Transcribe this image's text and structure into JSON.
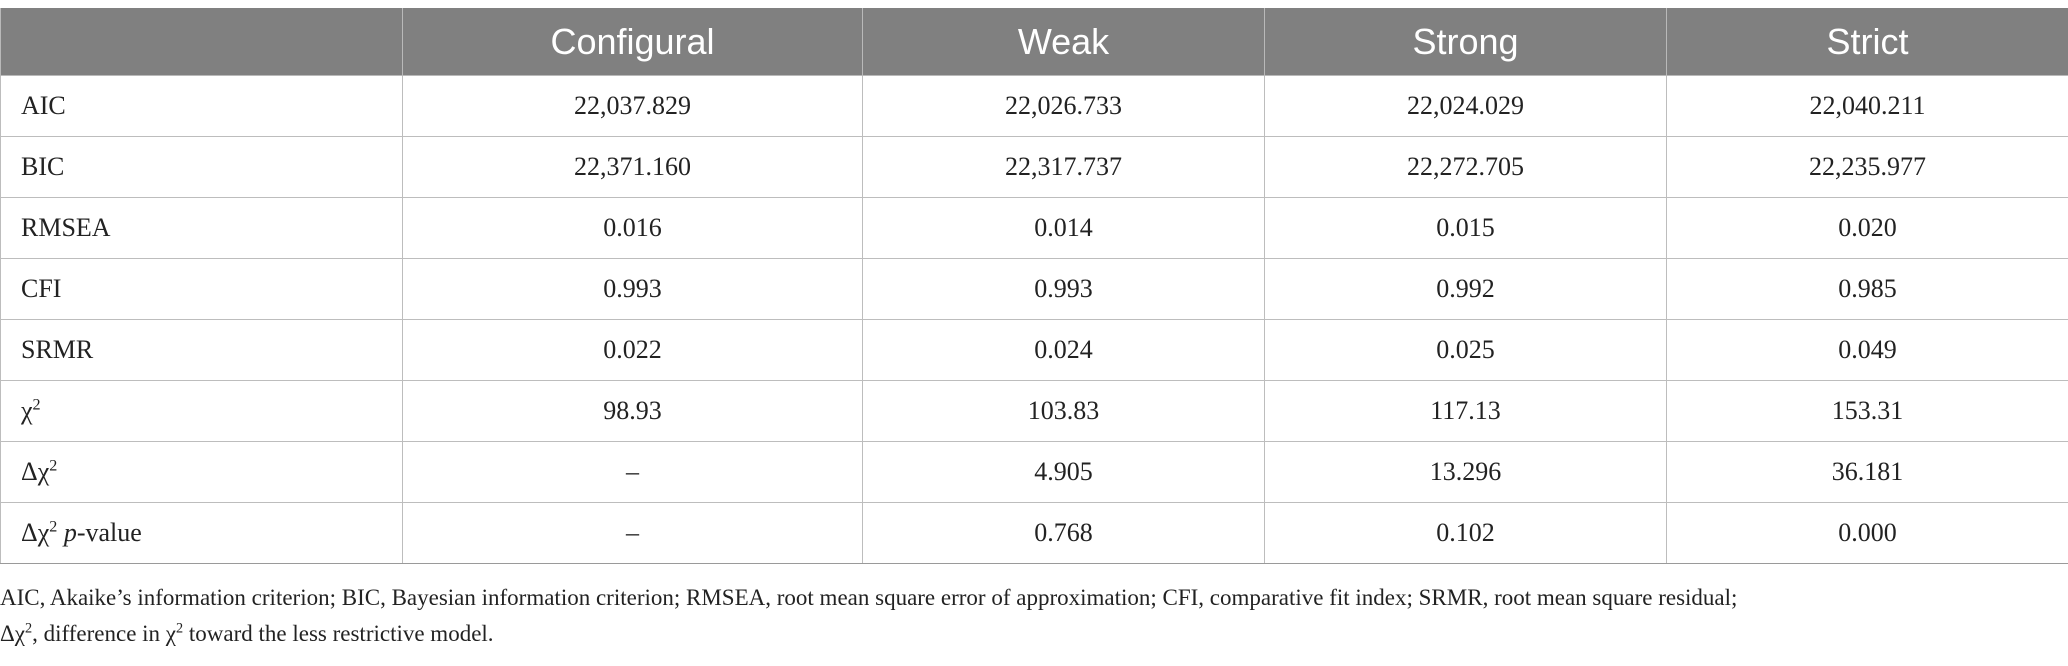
{
  "table": {
    "headers": [
      "",
      "Configural",
      "Weak",
      "Strong",
      "Strict"
    ],
    "rows": [
      {
        "label": "AIC",
        "label_base": "AIC",
        "values": [
          "22,037.829",
          "22,026.733",
          "22,024.029",
          "22,040.211"
        ]
      },
      {
        "label": "BIC",
        "label_base": "BIC",
        "values": [
          "22,371.160",
          "22,317.737",
          "22,272.705",
          "22,235.977"
        ]
      },
      {
        "label": "RMSEA",
        "label_base": "RMSEA",
        "values": [
          "0.016",
          "0.014",
          "0.015",
          "0.020"
        ]
      },
      {
        "label": "CFI",
        "label_base": "CFI",
        "values": [
          "0.993",
          "0.993",
          "0.992",
          "0.985"
        ]
      },
      {
        "label": "SRMR",
        "label_base": "SRMR",
        "values": [
          "0.022",
          "0.024",
          "0.025",
          "0.049"
        ]
      },
      {
        "label": "χ2",
        "label_base": "χ",
        "label_sup": "2",
        "values": [
          "98.93",
          "103.83",
          "117.13",
          "153.31"
        ]
      },
      {
        "label": "Δχ2",
        "label_base": "Δχ",
        "label_sup": "2",
        "values": [
          "–",
          "4.905",
          "13.296",
          "36.181"
        ]
      },
      {
        "label": "Δχ2 p-value",
        "label_base": "Δχ",
        "label_sup": "2",
        "label_italic": "p",
        "label_rest": "-value",
        "values": [
          "–",
          "0.768",
          "0.102",
          "0.000"
        ]
      }
    ]
  },
  "footnote": {
    "line1": "AIC, Akaike’s information criterion; BIC, Bayesian information criterion; RMSEA, root mean square error of approximation; CFI, comparative fit index; SRMR, root mean square residual;",
    "line2_a": "Δχ",
    "line2_sup1": "2",
    "line2_b": ", difference in χ",
    "line2_sup2": "2",
    "line2_c": " toward the less restrictive model."
  }
}
